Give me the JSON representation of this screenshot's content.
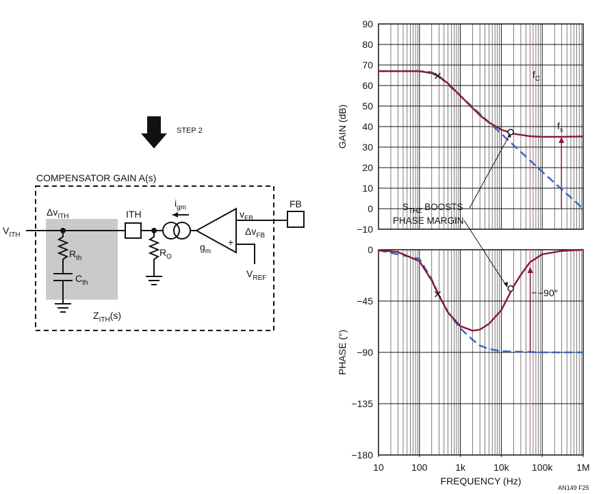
{
  "diagram": {
    "labels": [
      {
        "main": "STEP 2"
      },
      {
        "main": "COMPENSATOR GAIN A(s)"
      },
      {
        "main": "V",
        "sub": "ITH"
      },
      {
        "main": "Δv",
        "sub": "ITH"
      },
      {
        "main": "ITH"
      },
      {
        "main": "i",
        "sub": "gm"
      },
      {
        "main": "v",
        "sub": "FB"
      },
      {
        "main": "FB"
      },
      {
        "main": "Δv",
        "sub": "FB"
      },
      {
        "main": "R",
        "sub": "th"
      },
      {
        "main": "C",
        "sub": "th"
      },
      {
        "main": "R",
        "sub": "O"
      },
      {
        "main": "g",
        "sub": "m"
      },
      {
        "main": "V",
        "sub": "REF"
      },
      {
        "main": "Z",
        "sub": "ITH",
        "rest": "(s)"
      },
      {
        "main": "+"
      }
    ]
  },
  "figure_id": "AN149 F25",
  "chart_data": [
    {
      "type": "line",
      "ylabel": "GAIN (dB)",
      "log_x": true,
      "grid": true,
      "xlim": [
        10,
        1000000
      ],
      "ylim": [
        -10,
        90
      ],
      "yticks": [
        {
          "value": -10,
          "label": "−10"
        },
        0,
        10,
        20,
        30,
        40,
        50,
        60,
        70,
        80,
        90
      ],
      "series": [
        {
          "color": "#8b1a3a",
          "dashed": false,
          "x": [
            10,
            100,
            200,
            300,
            500,
            1000,
            2000,
            3000,
            5000,
            10000,
            20000,
            50000,
            100000,
            300000,
            1000000
          ],
          "values": [
            67,
            67,
            66,
            64.5,
            61,
            55,
            49,
            45.5,
            42,
            38.5,
            36.5,
            35.3,
            35,
            35,
            35.2
          ]
        },
        {
          "color": "#3a64c0",
          "dashed": true,
          "x": [
            10,
            100,
            200,
            300,
            1000,
            10000,
            100000,
            1000000
          ],
          "values": [
            67,
            67,
            66.5,
            64.5,
            55,
            36.5,
            18,
            0
          ]
        }
      ],
      "markers": [
        {
          "shape": "cross",
          "x": 280,
          "y": 64.7
        },
        {
          "shape": "circle",
          "x": 17000,
          "y": 37.3
        }
      ],
      "reference_lines": [
        {
          "x": 51000,
          "color": "#e8899a"
        }
      ],
      "arrows": [
        {
          "x": 295000,
          "from": 0,
          "to": 35,
          "color": "#8b1a3a"
        }
      ],
      "annotations": [
        {
          "main": "f",
          "sub": "C"
        },
        {
          "main": "f",
          "sub": "s"
        },
        {
          "main": "S",
          "sub": "THZ",
          "rest": " BOOSTS"
        },
        {
          "main": "PHASE MARGIN"
        }
      ]
    },
    {
      "type": "line",
      "ylabel": "PHASE (°)",
      "xlabel": "FREQUENCY (Hz)",
      "log_x": true,
      "grid": true,
      "xlim": [
        10,
        1000000
      ],
      "ylim": [
        -180,
        0
      ],
      "xticks": [
        10,
        100,
        {
          "value": 1000,
          "label": "1k"
        },
        {
          "value": 10000,
          "label": "10k"
        },
        {
          "value": 100000,
          "label": "100k"
        },
        {
          "value": 1000000,
          "label": "1M"
        }
      ],
      "yticks": [
        {
          "value": -180,
          "label": "−180"
        },
        {
          "value": -135,
          "label": "−135"
        },
        {
          "value": -90,
          "label": "−90"
        },
        {
          "value": -45,
          "label": "−45"
        },
        0
      ],
      "series": [
        {
          "color": "#8b1a3a",
          "dashed": false,
          "x": [
            10,
            30,
            100,
            200,
            300,
            500,
            1000,
            2000,
            3000,
            5000,
            10000,
            20000,
            30000,
            50000,
            100000,
            300000,
            1000000
          ],
          "values": [
            -0.5,
            -2,
            -10,
            -27,
            -40,
            -55,
            -67,
            -71,
            -70,
            -65,
            -53,
            -32,
            -22,
            -11,
            -4,
            -1,
            0
          ]
        },
        {
          "color": "#3a64c0",
          "dashed": true,
          "x": [
            10,
            100,
            200,
            300,
            500,
            1000,
            2000,
            3000,
            5000,
            10000,
            100000,
            1000000
          ],
          "values": [
            -0.5,
            -8,
            -26,
            -40,
            -55,
            -69,
            -79,
            -84,
            -87,
            -89,
            -90,
            -90
          ]
        }
      ],
      "markers": [
        {
          "shape": "cross",
          "x": 280,
          "y": -39
        },
        {
          "shape": "circle",
          "x": 17000,
          "y": -34
        }
      ],
      "reference_lines": [
        {
          "x": 51000,
          "color": "#e8899a"
        }
      ],
      "arrows": [
        {
          "x": 51000,
          "from": -90,
          "to": -15,
          "color": "#8b1a3a"
        }
      ],
      "annotations": [
        {
          "main": "−90°"
        }
      ]
    }
  ]
}
